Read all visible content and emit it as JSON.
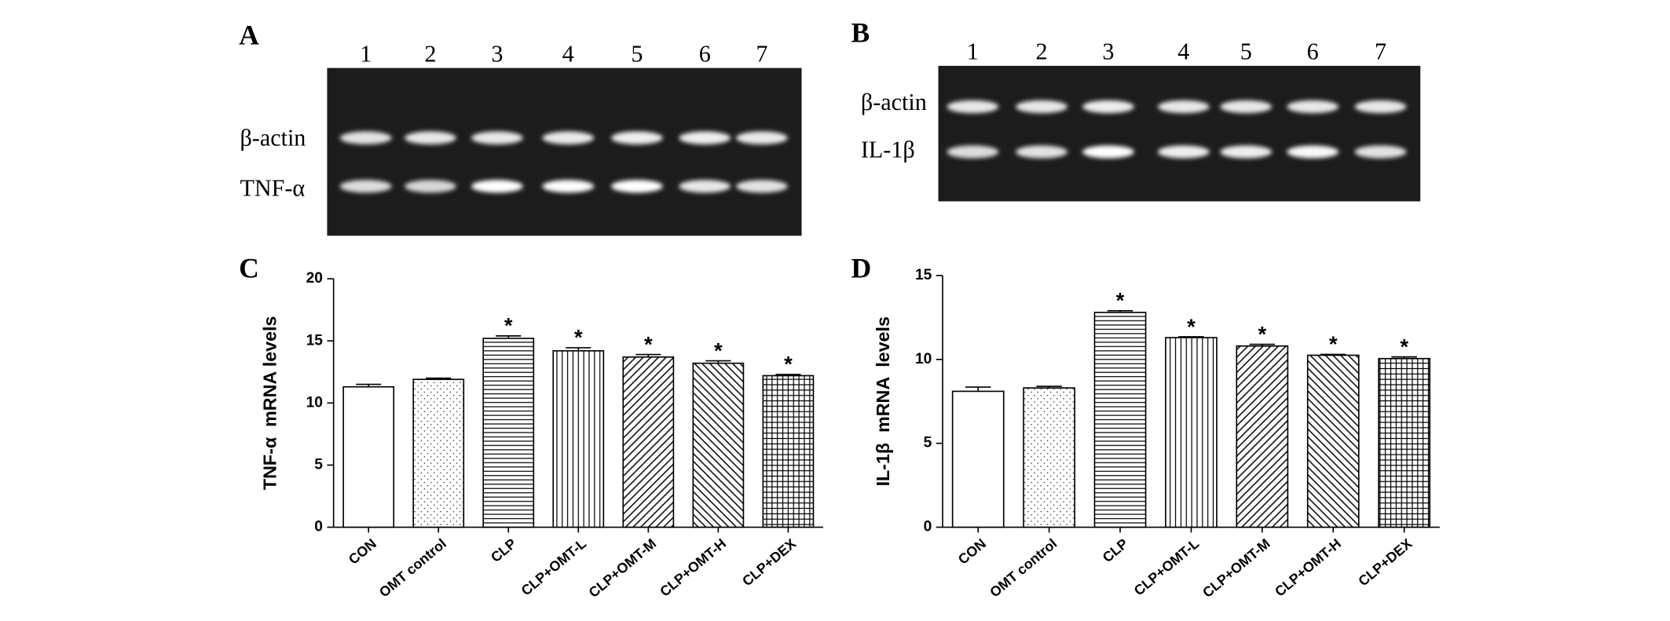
{
  "gels": [
    {
      "label": "A",
      "lanes": [
        "1",
        "2",
        "3",
        "4",
        "5",
        "6",
        "7"
      ],
      "bands": [
        "β-actin",
        "TNF-α"
      ]
    },
    {
      "label": "B",
      "lanes": [
        "1",
        "2",
        "3",
        "4",
        "5",
        "6",
        "7"
      ],
      "bands": [
        "β-actin",
        "IL-1β"
      ]
    }
  ],
  "chart_data": [
    {
      "type": "bar",
      "label": "C",
      "y_label": "TNF-α  mRNA levels",
      "categories": [
        "CON",
        "OMT control",
        "CLP",
        "CLP+OMT-L",
        "CLP+OMT-M",
        "CLP+OMT-H",
        "CLP+DEX"
      ],
      "values": [
        11.3,
        11.9,
        15.2,
        14.2,
        13.7,
        13.2,
        12.2
      ],
      "errors": [
        0.2,
        0.1,
        0.2,
        0.25,
        0.2,
        0.2,
        0.1
      ],
      "significance": [
        null,
        null,
        "*",
        "*",
        "*",
        "*",
        "*"
      ],
      "patterns": [
        "none",
        "dots",
        "horizontal",
        "vertical",
        "diagonal-up",
        "diagonal-down",
        "grid"
      ],
      "color": "#000000",
      "ylim": [
        0,
        20
      ],
      "yticks": [
        0,
        5,
        10,
        15,
        20
      ]
    },
    {
      "type": "bar",
      "label": "D",
      "y_label": "IL-1β  mRNA  levels",
      "categories": [
        "CON",
        "OMT control",
        "CLP",
        "CLP+OMT-L",
        "CLP+OMT-M",
        "CLP+OMT-H",
        "CLP+DEX"
      ],
      "values": [
        8.1,
        8.3,
        12.8,
        11.3,
        10.8,
        10.25,
        10.05
      ],
      "errors": [
        0.25,
        0.1,
        0.1,
        0.05,
        0.1,
        0.05,
        0.1
      ],
      "significance": [
        null,
        null,
        "*",
        "*",
        "*",
        "*",
        "*"
      ],
      "patterns": [
        "none",
        "dots",
        "horizontal",
        "vertical",
        "diagonal-up",
        "diagonal-down",
        "grid"
      ],
      "color": "#000000",
      "ylim": [
        0,
        15
      ],
      "yticks": [
        0,
        5,
        10,
        15
      ]
    }
  ]
}
